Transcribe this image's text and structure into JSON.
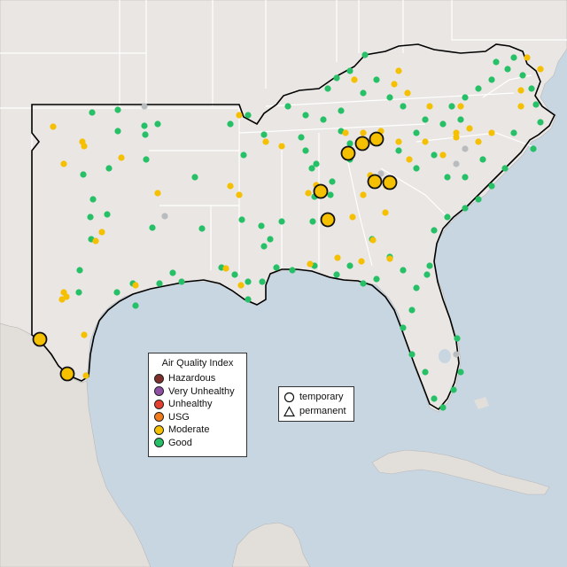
{
  "legend": {
    "title": "Air Quality Index",
    "categories": [
      {
        "label": "Hazardous",
        "color": "#7e2f2a"
      },
      {
        "label": "Very Unhealthy",
        "color": "#8f4fa5"
      },
      {
        "label": "Unhealthy",
        "color": "#e4402e"
      },
      {
        "label": "USG",
        "color": "#f07c1c"
      },
      {
        "label": "Moderate",
        "color": "#f5c000"
      },
      {
        "label": "Good",
        "color": "#26c067"
      }
    ],
    "no_data_color": "#b9bcbe"
  },
  "shape_legend": [
    {
      "label": "temporary",
      "icon": "circle-outline-icon"
    },
    {
      "label": "permanent",
      "icon": "triangle-outline-icon"
    }
  ],
  "map_colors": {
    "water": "#c8d6e2",
    "land": "#e9e6e3",
    "mexico_land": "#e2dfdb",
    "border": "#ffffff"
  },
  "stations": {
    "good": [
      [
        104,
        127
      ],
      [
        133,
        124
      ],
      [
        163,
        142
      ],
      [
        178,
        140
      ],
      [
        133,
        148
      ],
      [
        164,
        152
      ],
      [
        94,
        197
      ],
      [
        123,
        190
      ],
      [
        165,
        180
      ],
      [
        105,
        225
      ],
      [
        102,
        245
      ],
      [
        121,
        242
      ],
      [
        103,
        270
      ],
      [
        90,
        305
      ],
      [
        89,
        330
      ],
      [
        132,
        330
      ],
      [
        150,
        320
      ],
      [
        180,
        320
      ],
      [
        195,
        308
      ],
      [
        205,
        318
      ],
      [
        250,
        302
      ],
      [
        265,
        310
      ],
      [
        280,
        318
      ],
      [
        280,
        338
      ],
      [
        296,
        318
      ],
      [
        312,
        302
      ],
      [
        330,
        305
      ],
      [
        355,
        300
      ],
      [
        380,
        310
      ],
      [
        395,
        300
      ],
      [
        410,
        320
      ],
      [
        425,
        315
      ],
      [
        273,
        248
      ],
      [
        298,
        278
      ],
      [
        318,
        250
      ],
      [
        353,
        250
      ],
      [
        355,
        222
      ],
      [
        352,
        190
      ],
      [
        357,
        185
      ],
      [
        375,
        205
      ],
      [
        373,
        220
      ],
      [
        345,
        170
      ],
      [
        340,
        155
      ],
      [
        325,
        120
      ],
      [
        345,
        130
      ],
      [
        365,
        135
      ],
      [
        385,
        125
      ],
      [
        370,
        100
      ],
      [
        380,
        88
      ],
      [
        395,
        80
      ],
      [
        412,
        62
      ],
      [
        410,
        105
      ],
      [
        425,
        90
      ],
      [
        440,
        110
      ],
      [
        455,
        120
      ],
      [
        450,
        170
      ],
      [
        470,
        150
      ],
      [
        480,
        135
      ],
      [
        500,
        140
      ],
      [
        510,
        120
      ],
      [
        520,
        135
      ],
      [
        525,
        110
      ],
      [
        540,
        100
      ],
      [
        555,
        90
      ],
      [
        560,
        70
      ],
      [
        573,
        78
      ],
      [
        580,
        65
      ],
      [
        590,
        85
      ],
      [
        600,
        100
      ],
      [
        605,
        118
      ],
      [
        610,
        138
      ],
      [
        602,
        168
      ],
      [
        570,
        190
      ],
      [
        555,
        210
      ],
      [
        540,
        225
      ],
      [
        525,
        235
      ],
      [
        505,
        245
      ],
      [
        490,
        260
      ],
      [
        485,
        300
      ],
      [
        482,
        310
      ],
      [
        470,
        325
      ],
      [
        465,
        350
      ],
      [
        455,
        370
      ],
      [
        465,
        400
      ],
      [
        480,
        420
      ],
      [
        490,
        450
      ],
      [
        500,
        460
      ],
      [
        512,
        440
      ],
      [
        520,
        420
      ],
      [
        516,
        382
      ],
      [
        470,
        190
      ],
      [
        490,
        175
      ],
      [
        505,
        200
      ],
      [
        525,
        200
      ],
      [
        545,
        180
      ],
      [
        580,
        150
      ],
      [
        455,
        305
      ],
      [
        440,
        290
      ],
      [
        385,
        148
      ],
      [
        395,
        162
      ],
      [
        395,
        180
      ],
      [
        420,
        270
      ],
      [
        260,
        140
      ],
      [
        275,
        175
      ],
      [
        298,
        152
      ],
      [
        280,
        130
      ],
      [
        295,
        255
      ],
      [
        305,
        270
      ],
      [
        220,
        200
      ],
      [
        172,
        257
      ],
      [
        153,
        345
      ],
      [
        228,
        258
      ]
    ],
    "moderate": [
      [
        60,
        143
      ],
      [
        93,
        160
      ],
      [
        95,
        165
      ],
      [
        72,
        185
      ],
      [
        137,
        178
      ],
      [
        178,
        218
      ],
      [
        115,
        262
      ],
      [
        108,
        272
      ],
      [
        72,
        330
      ],
      [
        70,
        338
      ],
      [
        75,
        335
      ],
      [
        153,
        322
      ],
      [
        260,
        210
      ],
      [
        255,
        303
      ],
      [
        272,
        322
      ],
      [
        300,
        160
      ],
      [
        348,
        218
      ],
      [
        357,
        209
      ],
      [
        350,
        298
      ],
      [
        381,
        291
      ],
      [
        408,
        295
      ],
      [
        440,
        292
      ],
      [
        421,
        271
      ],
      [
        398,
        245
      ],
      [
        435,
        240
      ],
      [
        436,
        210
      ],
      [
        418,
        198
      ],
      [
        390,
        150
      ],
      [
        410,
        150
      ],
      [
        420,
        160
      ],
      [
        430,
        148
      ],
      [
        450,
        160
      ],
      [
        462,
        180
      ],
      [
        480,
        160
      ],
      [
        500,
        175
      ],
      [
        515,
        150
      ],
      [
        540,
        160
      ],
      [
        555,
        150
      ],
      [
        530,
        145
      ],
      [
        520,
        120
      ],
      [
        515,
        155
      ],
      [
        485,
        120
      ],
      [
        460,
        105
      ],
      [
        450,
        80
      ],
      [
        445,
        95
      ],
      [
        400,
        90
      ],
      [
        595,
        65
      ],
      [
        610,
        78
      ],
      [
        588,
        102
      ],
      [
        588,
        120
      ],
      [
        410,
        220
      ],
      [
        270,
        130
      ],
      [
        318,
        165
      ],
      [
        270,
        220
      ],
      [
        97,
        424
      ],
      [
        95,
        378
      ]
    ],
    "no_data": [
      [
        163,
        120
      ],
      [
        186,
        244
      ],
      [
        430,
        196
      ],
      [
        515,
        185
      ],
      [
        525,
        168
      ],
      [
        515,
        400
      ]
    ],
    "temporary_moderate": [
      [
        45,
        383
      ],
      [
        76,
        422
      ],
      [
        362,
        216
      ],
      [
        370,
        248
      ],
      [
        393,
        173
      ],
      [
        409,
        162
      ],
      [
        425,
        157
      ],
      [
        423,
        205
      ],
      [
        440,
        206
      ]
    ]
  }
}
